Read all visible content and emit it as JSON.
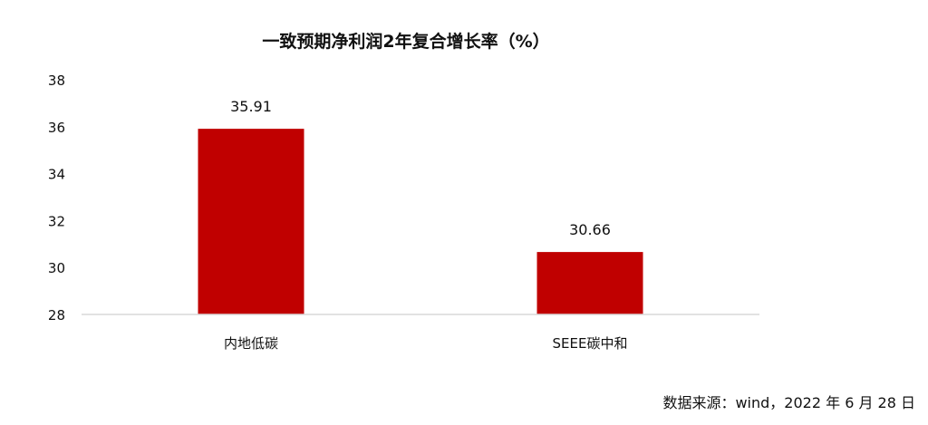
{
  "chart_data": {
    "type": "bar",
    "title": "一致预期净利润2年复合增长率（%）",
    "categories": [
      "内地低碳",
      "SEEE碳中和"
    ],
    "series": [
      {
        "values": [
          35.91,
          30.66
        ],
        "labels": [
          "35.91",
          "30.66"
        ]
      }
    ],
    "ylim": [
      28,
      38
    ],
    "yticks": [
      28,
      30,
      32,
      34,
      36,
      38
    ],
    "ytick_labels": [
      "28",
      "30",
      "32",
      "34",
      "36",
      "38"
    ],
    "xlabel": "",
    "ylabel": "",
    "grid": false,
    "legend": "none",
    "colors": {
      "bar": "#C00000",
      "axis": "#d9d9d9",
      "text": "#111111"
    }
  },
  "source": "数据来源：wind，2022 年 6 月 28 日"
}
